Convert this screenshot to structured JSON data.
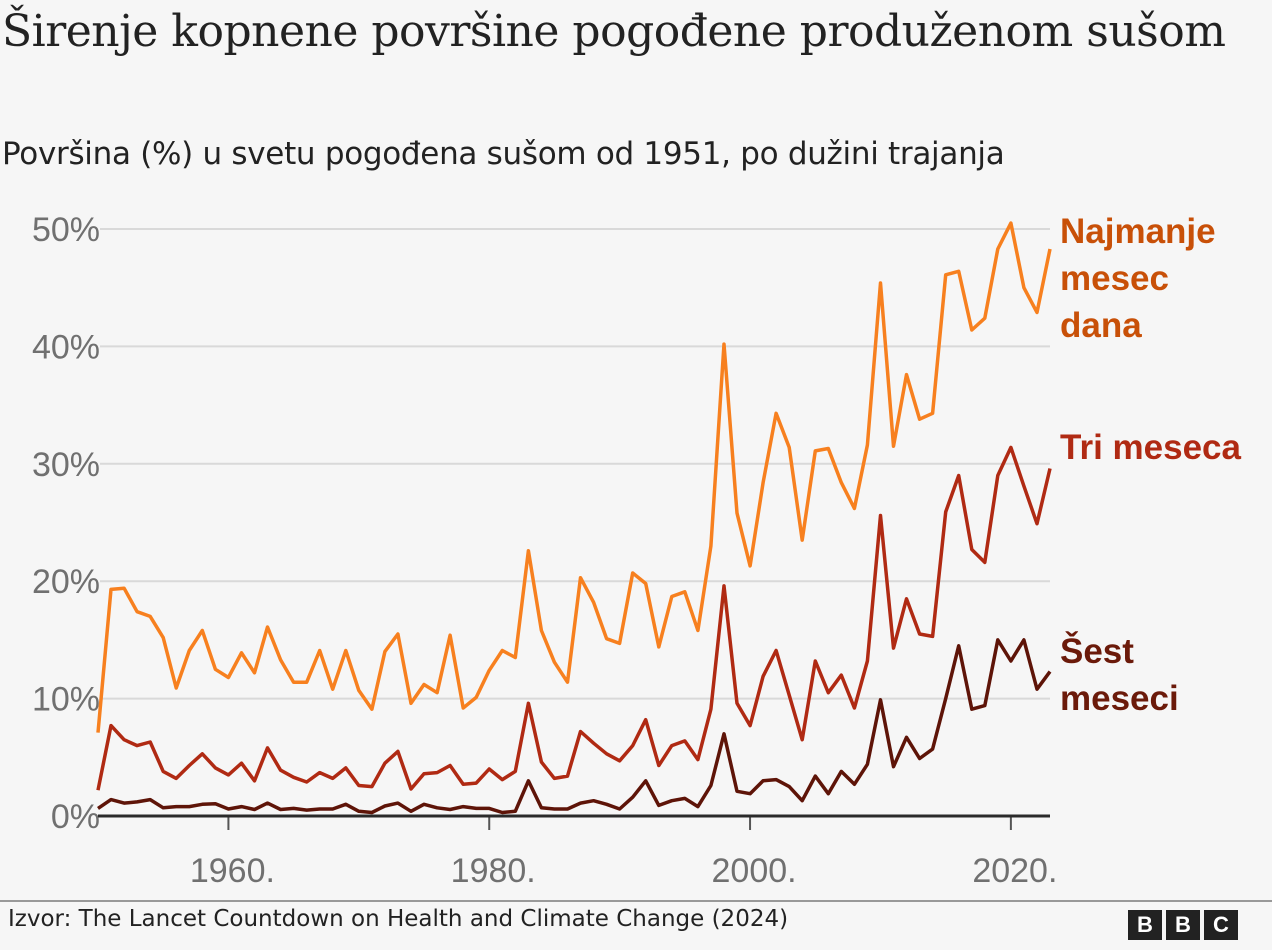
{
  "title": "Širenje kopnene površine pogođene produženom sušom",
  "subtitle": "Površina (%) u svetu pogođena sušom od 1951, po dužini trajanja",
  "source": "Izvor: The Lancet Countdown on Health and Climate Change (2024)",
  "logo": [
    "B",
    "B",
    "C"
  ],
  "chart_data": {
    "type": "line",
    "title": "Širenje kopnene površine pogođene produženom sušom",
    "subtitle": "Površina (%) u svetu pogođena sušom od 1951, po dužini trajanja",
    "xlabel": "",
    "ylabel": "",
    "xlim": [
      1950,
      2023
    ],
    "ylim": [
      0,
      50
    ],
    "grid": true,
    "legend": "direct labels at right",
    "y_ticks": [
      0,
      10,
      20,
      30,
      40,
      50
    ],
    "y_tick_labels": [
      "0%",
      "10%",
      "20%",
      "30%",
      "40%",
      "50%"
    ],
    "x_ticks": [
      1960,
      1980,
      2000,
      2020
    ],
    "x_tick_labels": [
      "1960.",
      "1980.",
      "2000.",
      "2020."
    ],
    "x": [
      1950,
      1951,
      1952,
      1953,
      1954,
      1955,
      1956,
      1957,
      1958,
      1959,
      1960,
      1961,
      1962,
      1963,
      1964,
      1965,
      1966,
      1967,
      1968,
      1969,
      1970,
      1971,
      1972,
      1973,
      1974,
      1975,
      1976,
      1977,
      1978,
      1979,
      1980,
      1981,
      1982,
      1983,
      1984,
      1985,
      1986,
      1987,
      1988,
      1989,
      1990,
      1991,
      1992,
      1993,
      1994,
      1995,
      1996,
      1997,
      1998,
      1999,
      2000,
      2001,
      2002,
      2003,
      2004,
      2005,
      2006,
      2007,
      2008,
      2009,
      2010,
      2011,
      2012,
      2013,
      2014,
      2015,
      2016,
      2017,
      2018,
      2019,
      2020,
      2021,
      2022,
      2023
    ],
    "series": [
      {
        "name": "Najmanje mesec dana",
        "color": "#f7801f",
        "label_color": "#c85008",
        "values": [
          7.1,
          19.3,
          19.4,
          17.4,
          17.0,
          15.2,
          10.9,
          14.1,
          15.8,
          12.5,
          11.8,
          13.9,
          12.2,
          16.1,
          13.3,
          11.4,
          11.4,
          14.1,
          10.8,
          14.1,
          10.7,
          9.1,
          14.0,
          15.5,
          9.6,
          11.2,
          10.5,
          15.4,
          9.2,
          10.1,
          12.4,
          14.1,
          13.5,
          22.6,
          15.8,
          13.1,
          11.4,
          20.3,
          18.2,
          15.1,
          14.7,
          20.7,
          19.8,
          14.4,
          18.7,
          19.1,
          15.8,
          23.0,
          40.2,
          25.8,
          21.3,
          28.4,
          34.3,
          31.4,
          23.5,
          31.1,
          31.3,
          28.4,
          26.2,
          31.6,
          45.4,
          31.5,
          37.6,
          33.8,
          34.3,
          46.1,
          46.4,
          41.4,
          42.4,
          48.3,
          50.5,
          45.0,
          42.9,
          48.3
        ]
      },
      {
        "name": "Tri meseca",
        "color": "#b02a13",
        "label_color": "#b02a13",
        "values": [
          2.2,
          7.7,
          6.5,
          6.0,
          6.3,
          3.8,
          3.2,
          4.3,
          5.3,
          4.1,
          3.5,
          4.5,
          3.0,
          5.8,
          3.9,
          3.3,
          2.9,
          3.7,
          3.2,
          4.1,
          2.6,
          2.5,
          4.5,
          5.5,
          2.3,
          3.6,
          3.7,
          4.3,
          2.7,
          2.8,
          4.0,
          3.1,
          3.8,
          9.6,
          4.6,
          3.2,
          3.4,
          7.2,
          6.2,
          5.3,
          4.7,
          6.0,
          8.2,
          4.3,
          6.0,
          6.4,
          4.8,
          9.1,
          19.6,
          9.6,
          7.7,
          11.9,
          14.1,
          10.3,
          6.5,
          13.2,
          10.5,
          12.0,
          9.2,
          13.2,
          25.6,
          14.3,
          18.5,
          15.5,
          15.3,
          25.9,
          29.0,
          22.7,
          21.6,
          29.0,
          31.4,
          28.1,
          24.9,
          29.6
        ]
      },
      {
        "name": "Šest meseci",
        "color": "#5e1408",
        "label_color": "#6b1a0a",
        "values": [
          0.65,
          1.4,
          1.1,
          1.2,
          1.4,
          0.7,
          0.8,
          0.8,
          1.0,
          1.05,
          0.6,
          0.8,
          0.55,
          1.1,
          0.55,
          0.65,
          0.5,
          0.6,
          0.6,
          1.0,
          0.4,
          0.3,
          0.85,
          1.1,
          0.4,
          1.0,
          0.7,
          0.55,
          0.8,
          0.65,
          0.65,
          0.3,
          0.4,
          3.0,
          0.7,
          0.6,
          0.6,
          1.1,
          1.3,
          1.0,
          0.6,
          1.6,
          3.0,
          0.9,
          1.3,
          1.5,
          0.8,
          2.6,
          7.0,
          2.1,
          1.9,
          3.0,
          3.1,
          2.5,
          1.3,
          3.4,
          1.9,
          3.8,
          2.7,
          4.4,
          9.9,
          4.2,
          6.7,
          4.9,
          5.7,
          10.0,
          14.5,
          9.1,
          9.4,
          15.0,
          13.2,
          15.0,
          10.8,
          12.3
        ]
      }
    ],
    "labels": [
      {
        "text_lines": [
          "Najmanje",
          "mesec",
          "dana"
        ]
      },
      {
        "text_lines": [
          "Tri meseca"
        ]
      },
      {
        "text_lines": [
          "Šest",
          "meseci"
        ]
      }
    ]
  }
}
